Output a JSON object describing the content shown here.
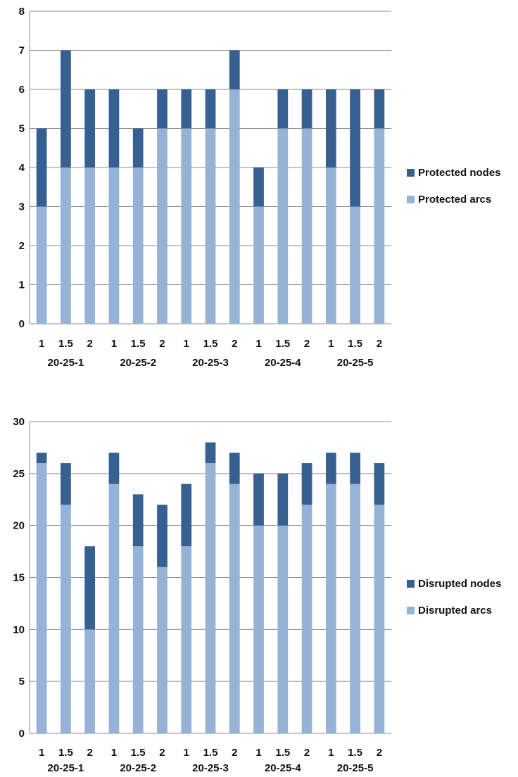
{
  "chart_data": [
    {
      "type": "bar",
      "stacked": true,
      "title": "",
      "xlabel": "",
      "ylabel": "",
      "ylim": [
        0,
        8
      ],
      "yticks": [
        "0",
        "1",
        "2",
        "3",
        "4",
        "5",
        "6",
        "7",
        "8"
      ],
      "grid": true,
      "legend_position": "right",
      "groups": [
        "20-25-1",
        "20-25-2",
        "20-25-3",
        "20-25-4",
        "20-25-5"
      ],
      "categories": [
        "1",
        "1.5",
        "2",
        "1",
        "1.5",
        "2",
        "1",
        "1.5",
        "2",
        "1",
        "1.5",
        "2",
        "1",
        "1.5",
        "2"
      ],
      "series": [
        {
          "name": "Protected arcs",
          "color": "#95b3d7",
          "values": [
            3,
            4,
            4,
            4,
            4,
            5,
            5,
            5,
            6,
            3,
            5,
            5,
            4,
            3,
            5
          ]
        },
        {
          "name": "Protected nodes",
          "color": "#366092",
          "values": [
            2,
            3,
            2,
            2,
            1,
            1,
            1,
            1,
            1,
            1,
            1,
            1,
            2,
            3,
            1
          ]
        }
      ],
      "legend": [
        "Protected nodes",
        "Protected arcs"
      ]
    },
    {
      "type": "bar",
      "stacked": true,
      "title": "",
      "xlabel": "",
      "ylabel": "",
      "ylim": [
        0,
        30
      ],
      "yticks": [
        "0",
        "5",
        "10",
        "15",
        "20",
        "25",
        "30"
      ],
      "grid": true,
      "legend_position": "right",
      "groups": [
        "20-25-1",
        "20-25-2",
        "20-25-3",
        "20-25-4",
        "20-25-5"
      ],
      "categories": [
        "1",
        "1.5",
        "2",
        "1",
        "1.5",
        "2",
        "1",
        "1.5",
        "2",
        "1",
        "1.5",
        "2",
        "1",
        "1.5",
        "2"
      ],
      "series": [
        {
          "name": "Disrupted arcs",
          "color": "#95b3d7",
          "values": [
            26,
            22,
            10,
            24,
            18,
            16,
            18,
            26,
            24,
            20,
            20,
            22,
            24,
            24,
            22
          ]
        },
        {
          "name": "Disrupted nodes",
          "color": "#366092",
          "values": [
            1,
            4,
            8,
            3,
            5,
            6,
            6,
            2,
            3,
            5,
            5,
            4,
            3,
            3,
            4
          ]
        }
      ],
      "legend": [
        "Disrupted nodes",
        "Disrupted arcs"
      ]
    }
  ]
}
